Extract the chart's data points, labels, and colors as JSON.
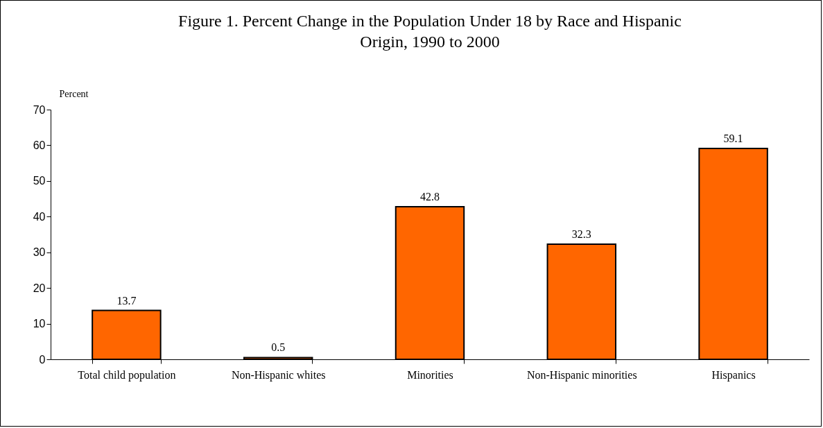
{
  "chart_data": {
    "type": "bar",
    "title": "Figure 1. Percent Change in the Population Under 18 by Race and Hispanic Origin, 1990 to 2000",
    "ylabel": "Percent",
    "categories": [
      "Total child population",
      "Non-Hispanic whites",
      "Minorities",
      "Non-Hispanic minorities",
      "Hispanics"
    ],
    "values": [
      13.7,
      0.5,
      42.8,
      32.3,
      59.1
    ],
    "color": "#ff6600",
    "ylim": [
      0,
      70
    ],
    "yticks": [
      0,
      10,
      20,
      30,
      40,
      50,
      60,
      70
    ],
    "grid": false,
    "data_labels": true
  }
}
